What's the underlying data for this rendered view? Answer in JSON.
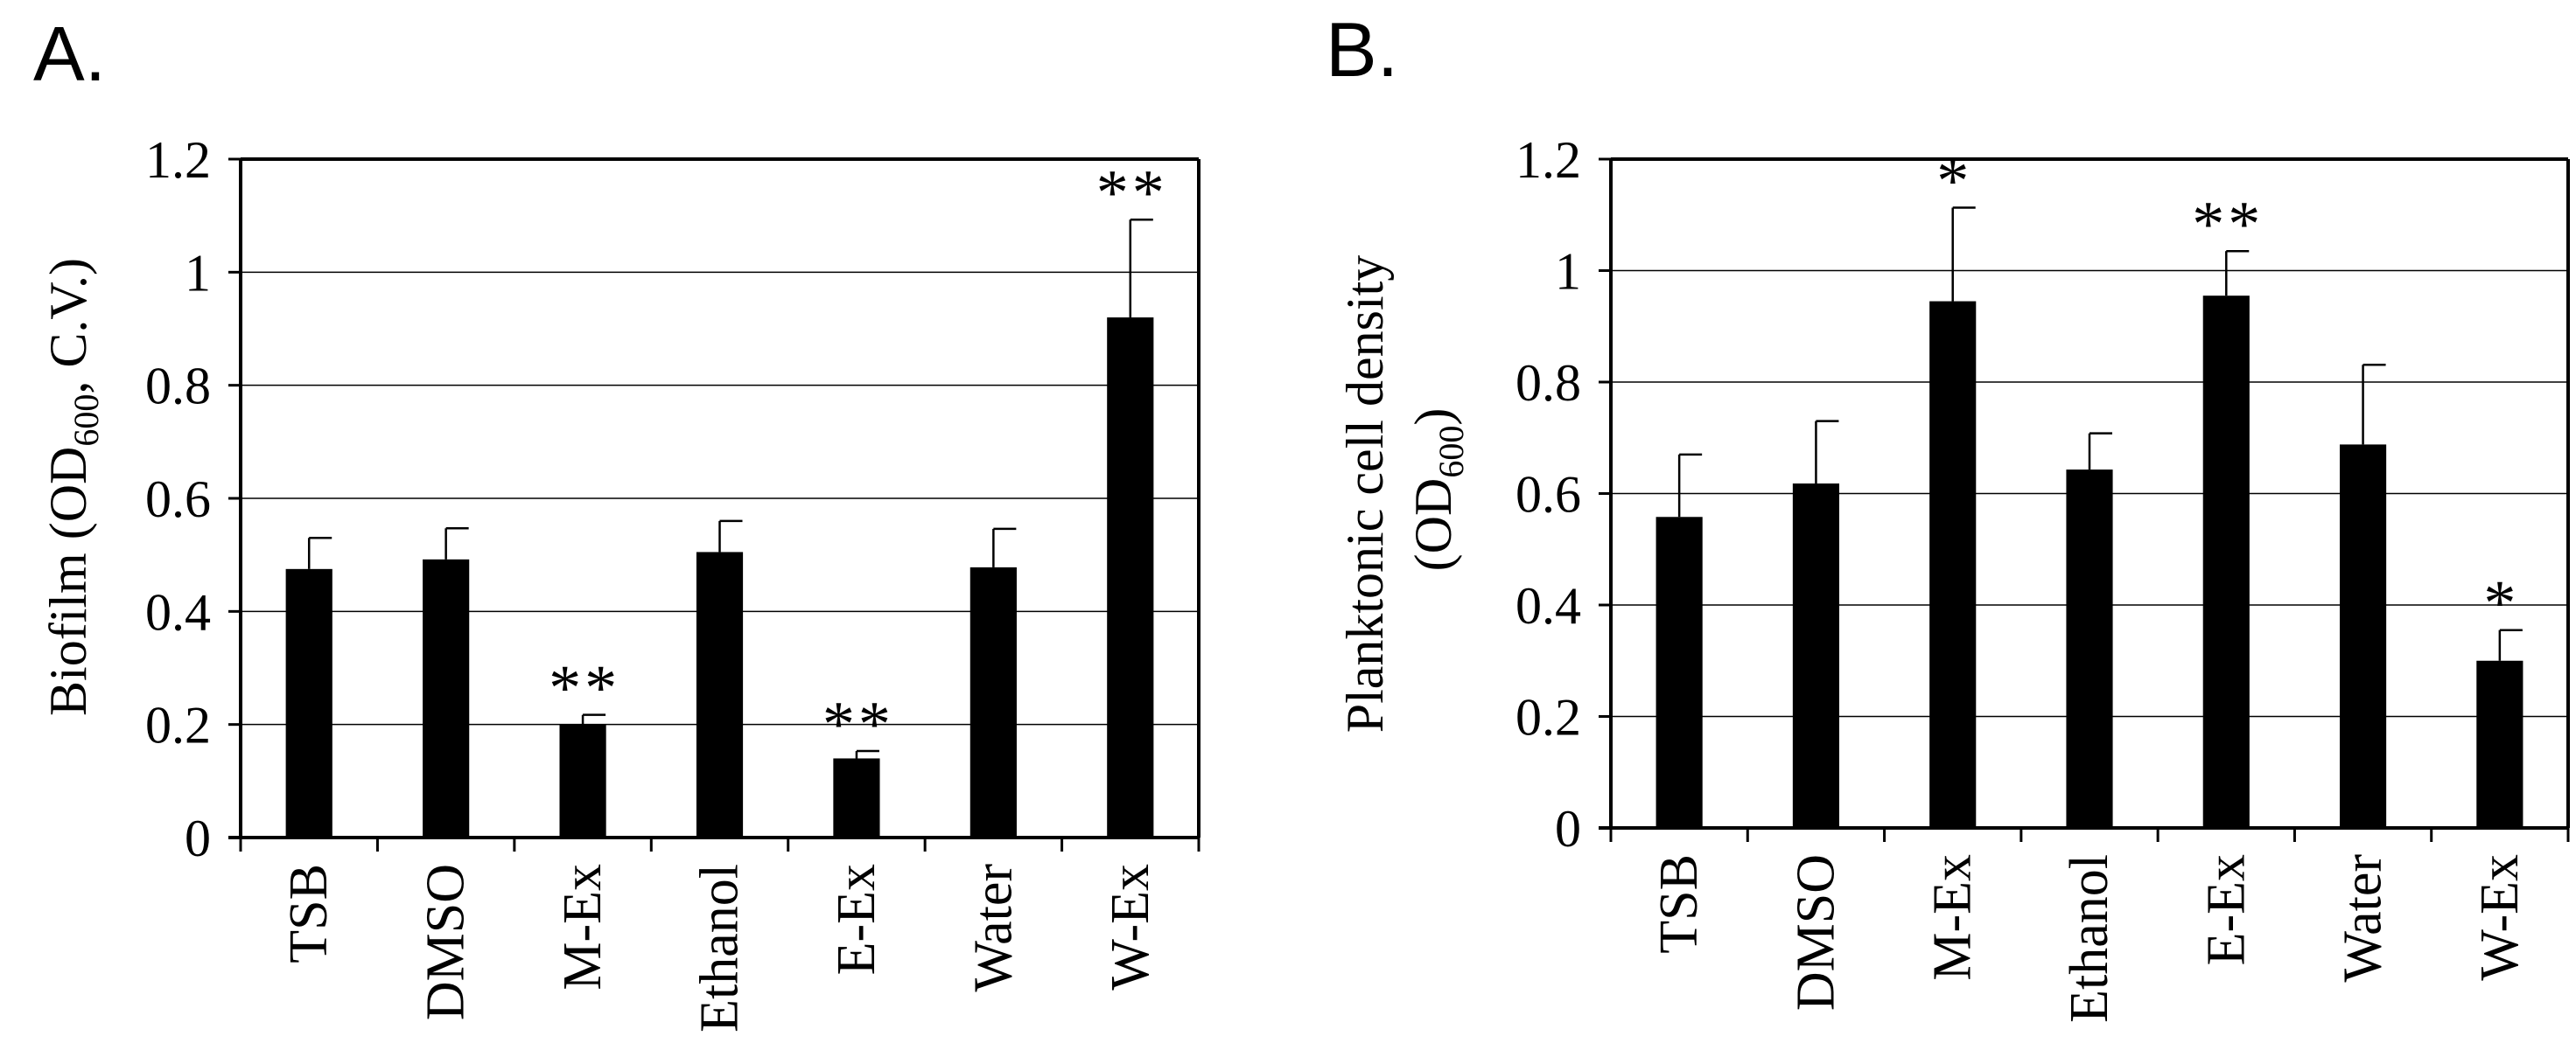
{
  "chart_data": [
    {
      "panel_label": "A.",
      "type": "bar",
      "ylabel_main": "Biofilm (OD",
      "ylabel_sub": "600",
      "ylabel_tail": ", C.V.)",
      "ylim": [
        0,
        1.2
      ],
      "y_ticks": [
        "0",
        "0.2",
        "0.4",
        "0.6",
        "0.8",
        "1",
        "1.2"
      ],
      "grid": true,
      "categories": [
        "TSB",
        "DMSO",
        "M-Ex",
        "Ethanol",
        "E-Ex",
        "Water",
        "W-Ex"
      ],
      "values": [
        0.475,
        0.492,
        0.2,
        0.505,
        0.14,
        0.478,
        0.92
      ],
      "errors": [
        0.055,
        0.055,
        0.017,
        0.055,
        0.013,
        0.068,
        0.173
      ],
      "significance": [
        "",
        "",
        "**",
        "",
        "**",
        "",
        "**"
      ]
    },
    {
      "panel_label": "B.",
      "type": "bar",
      "ylabel_line1": "Planktonic cell density",
      "ylabel_line2_main": "(OD",
      "ylabel_line2_sub": "600",
      "ylabel_line2_tail": ")",
      "ylim": [
        0,
        1.2
      ],
      "y_ticks": [
        "0",
        "0.2",
        "0.4",
        "0.6",
        "0.8",
        "1",
        "1.2"
      ],
      "grid": true,
      "categories": [
        "TSB",
        "DMSO",
        "M-Ex",
        "Ethanol",
        "E-Ex",
        "Water",
        "W-Ex"
      ],
      "values": [
        0.558,
        0.618,
        0.945,
        0.643,
        0.955,
        0.688,
        0.3
      ],
      "errors": [
        0.112,
        0.112,
        0.168,
        0.065,
        0.08,
        0.143,
        0.055
      ],
      "significance": [
        "",
        "",
        "*",
        "",
        "**",
        "",
        "*"
      ]
    }
  ]
}
